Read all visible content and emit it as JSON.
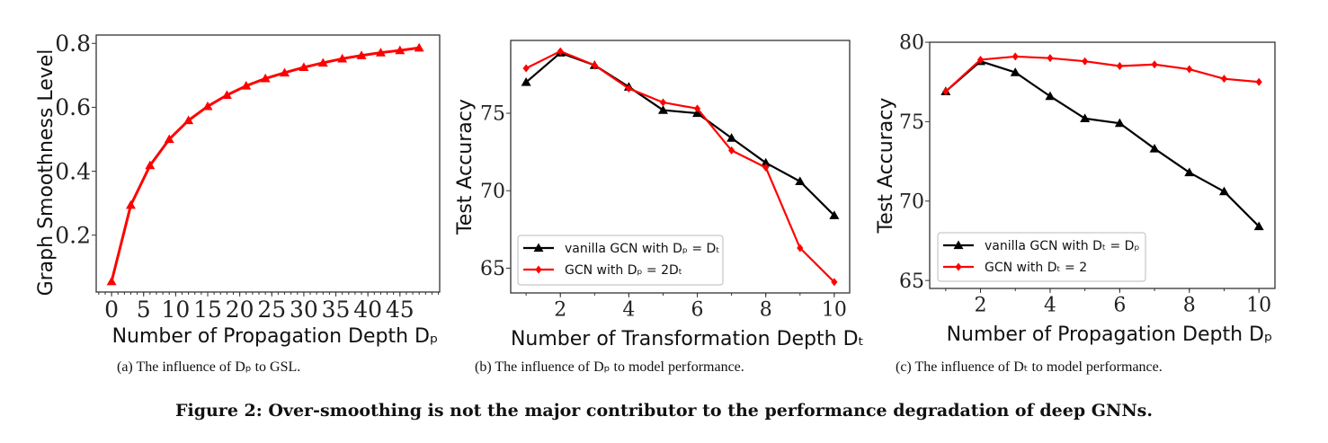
{
  "figure_title": "Figure 2: Over-smoothing is not the major contributor to the performance degradation of deep GNNs.",
  "captions": [
    "(a) The influence of Dₚ to GSL.",
    "(b) The influence of Dₚ to model performance.",
    "(c) The influence of Dₜ to model performance."
  ],
  "chart_data": [
    {
      "type": "line",
      "xlabel": "Number of Propagation Depth Dₚ",
      "ylabel": "Graph Smoothness Level",
      "xlim": [
        -2.4,
        51.2
      ],
      "ylim": [
        0.022,
        0.826
      ],
      "xticks": [
        0,
        5,
        10,
        15,
        20,
        25,
        30,
        35,
        40,
        45
      ],
      "yticks": [
        0.2,
        0.4,
        0.6,
        0.8
      ],
      "ytick_labels": [
        "0.2",
        "0.4",
        "0.6",
        "0.8"
      ],
      "grid": false,
      "series": [
        {
          "color": "#ff0000",
          "marker": "triangle",
          "x": [
            0,
            3,
            6,
            9,
            12,
            15,
            18,
            21,
            24,
            27,
            30,
            33,
            36,
            39,
            42,
            45,
            48
          ],
          "values": [
            0.055,
            0.294,
            0.418,
            0.5,
            0.559,
            0.603,
            0.638,
            0.667,
            0.69,
            0.708,
            0.725,
            0.739,
            0.752,
            0.762,
            0.771,
            0.778,
            0.786
          ]
        }
      ]
    },
    {
      "type": "line",
      "xlabel": "Number of Transformation Depth Dₜ",
      "ylabel": "Test Accuracy",
      "xlim": [
        0.55,
        10.45
      ],
      "ylim": [
        63.4,
        79.7
      ],
      "xticks": [
        2,
        4,
        6,
        8,
        10
      ],
      "yticks": [
        65,
        70,
        75
      ],
      "ytick_labels": [
        "65",
        "70",
        "75"
      ],
      "grid": false,
      "legend": "lower-left",
      "x": [
        1,
        2,
        3,
        4,
        5,
        6,
        7,
        8,
        9,
        10
      ],
      "series": [
        {
          "name": "vanilla GCN with Dₚ = Dₜ",
          "color": "#000000",
          "marker": "triangle",
          "values": [
            77.0,
            78.9,
            78.1,
            76.7,
            75.2,
            75.0,
            73.4,
            71.8,
            70.6,
            68.4
          ]
        },
        {
          "name": "GCN with Dₚ = 2Dₜ",
          "color": "#ff0000",
          "marker": "diamond",
          "values": [
            77.9,
            79.0,
            78.1,
            76.6,
            75.7,
            75.3,
            72.6,
            71.5,
            66.3,
            64.1
          ]
        }
      ]
    },
    {
      "type": "line",
      "xlabel": "Number of Propagation Depth Dₚ",
      "ylabel": "Test Accuracy",
      "xlim": [
        0.54,
        10.46
      ],
      "ylim": [
        64.5,
        80.0
      ],
      "xticks": [
        2,
        4,
        6,
        8,
        10
      ],
      "yticks": [
        65,
        70,
        75,
        80
      ],
      "ytick_labels": [
        "65",
        "70",
        "75",
        "80"
      ],
      "grid": false,
      "legend": "lower-left",
      "x": [
        1,
        2,
        3,
        4,
        5,
        6,
        7,
        8,
        9,
        10
      ],
      "series": [
        {
          "name": "vanilla GCN with Dₜ = Dₚ",
          "color": "#000000",
          "marker": "triangle",
          "values": [
            76.9,
            78.8,
            78.1,
            76.6,
            75.2,
            74.9,
            73.3,
            71.8,
            70.6,
            68.4
          ]
        },
        {
          "name": "GCN with Dₜ = 2",
          "color": "#ff0000",
          "marker": "diamond",
          "values": [
            76.9,
            78.9,
            79.1,
            79.0,
            78.8,
            78.5,
            78.6,
            78.3,
            77.7,
            77.5
          ]
        }
      ]
    }
  ]
}
